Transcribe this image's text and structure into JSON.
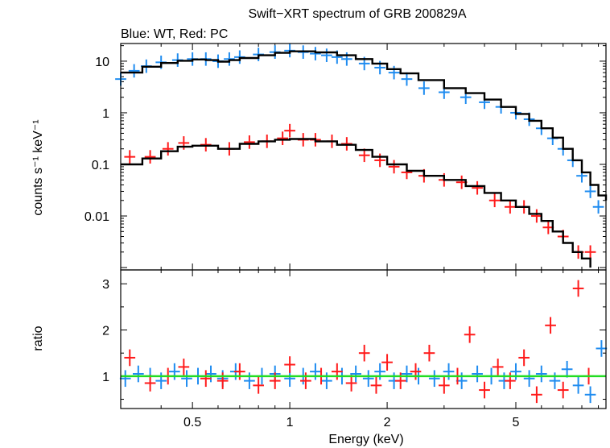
{
  "figure": {
    "title": "Swift−XRT spectrum of GRB 200829A",
    "subtitle": "Blue: WT, Red: PC",
    "xlabel": "Energy (keV)",
    "colors": {
      "wt": "#1f8cf0",
      "pc": "#ff1a1a",
      "model": "#000000",
      "unity": "#22dd22"
    }
  },
  "chart_data": [
    {
      "type": "scatter",
      "panel": "spectrum",
      "ylabel": "counts s⁻¹ keV⁻¹",
      "xscale": "log",
      "yscale": "log",
      "xlim": [
        0.3,
        9.5
      ],
      "ylim": [
        0.0009,
        22
      ],
      "x_ticks": [
        "0.5",
        "1",
        "2",
        "5"
      ],
      "y_ticks": [
        "10",
        "1",
        "0.1",
        "0.01"
      ],
      "series": [
        {
          "role": "WT",
          "x": [
            0.3,
            0.33,
            0.36,
            0.4,
            0.45,
            0.5,
            0.55,
            0.6,
            0.65,
            0.7,
            0.8,
            0.9,
            1.0,
            1.1,
            1.2,
            1.3,
            1.4,
            1.5,
            1.7,
            1.9,
            2.1,
            2.3,
            2.6,
            3.0,
            3.5,
            4.0,
            4.5,
            5.0,
            5.5,
            6.0,
            6.5,
            7.0,
            7.5,
            8.0,
            8.5,
            9.0
          ],
          "y": [
            4.5,
            6.5,
            8.0,
            9.5,
            10.5,
            11.0,
            11.0,
            10.0,
            11.0,
            12.0,
            13.5,
            15.0,
            16.0,
            15.0,
            14.0,
            13.0,
            12.0,
            11.0,
            9.0,
            7.5,
            6.0,
            4.5,
            3.0,
            2.5,
            2.0,
            1.6,
            1.3,
            1.0,
            0.75,
            0.5,
            0.32,
            0.2,
            0.12,
            0.06,
            0.03,
            0.015
          ]
        },
        {
          "role": "PC",
          "x": [
            0.32,
            0.37,
            0.42,
            0.47,
            0.55,
            0.65,
            0.75,
            0.85,
            0.95,
            1.0,
            1.1,
            1.2,
            1.35,
            1.5,
            1.7,
            1.9,
            2.1,
            2.3,
            2.6,
            3.0,
            3.4,
            3.8,
            4.3,
            4.8,
            5.3,
            5.8,
            6.3,
            7.0,
            7.8,
            8.5
          ],
          "y": [
            0.14,
            0.14,
            0.2,
            0.26,
            0.24,
            0.2,
            0.27,
            0.28,
            0.32,
            0.45,
            0.3,
            0.3,
            0.28,
            0.25,
            0.15,
            0.12,
            0.09,
            0.07,
            0.06,
            0.05,
            0.045,
            0.035,
            0.02,
            0.015,
            0.015,
            0.01,
            0.006,
            0.004,
            0.002,
            0.002
          ]
        },
        {
          "role": "model-WT",
          "x": [
            0.3,
            0.35,
            0.4,
            0.45,
            0.5,
            0.55,
            0.6,
            0.65,
            0.7,
            0.8,
            0.9,
            1.0,
            1.1,
            1.2,
            1.4,
            1.6,
            1.8,
            2.0,
            2.2,
            2.5,
            3.0,
            3.5,
            4.0,
            4.5,
            5.0,
            5.5,
            6.0,
            6.5,
            7.0,
            7.5,
            8.0,
            8.5,
            9.0,
            9.5
          ],
          "y": [
            6.0,
            7.8,
            9.2,
            10.2,
            10.8,
            10.5,
            9.8,
            10.5,
            11.5,
            13.0,
            14.5,
            15.5,
            15.5,
            14.8,
            13.0,
            11.0,
            9.0,
            7.0,
            5.8,
            4.3,
            3.0,
            2.4,
            1.8,
            1.3,
            0.95,
            0.7,
            0.5,
            0.33,
            0.2,
            0.12,
            0.07,
            0.04,
            0.025,
            0.02
          ]
        },
        {
          "role": "model-PC",
          "x": [
            0.3,
            0.35,
            0.4,
            0.45,
            0.5,
            0.6,
            0.7,
            0.8,
            0.9,
            1.0,
            1.2,
            1.4,
            1.6,
            1.8,
            2.0,
            2.3,
            2.6,
            3.0,
            3.5,
            4.0,
            4.5,
            5.0,
            5.5,
            6.0,
            6.5,
            7.0,
            7.5,
            8.0,
            8.5
          ],
          "y": [
            0.1,
            0.13,
            0.18,
            0.22,
            0.23,
            0.2,
            0.25,
            0.28,
            0.3,
            0.31,
            0.28,
            0.24,
            0.19,
            0.14,
            0.1,
            0.075,
            0.06,
            0.05,
            0.038,
            0.028,
            0.02,
            0.015,
            0.011,
            0.008,
            0.005,
            0.003,
            0.002,
            0.0015,
            0.001
          ]
        }
      ]
    },
    {
      "type": "scatter",
      "panel": "ratio",
      "ylabel": "ratio",
      "xscale": "log",
      "xlim": [
        0.3,
        9.5
      ],
      "ylim": [
        0.3,
        3.3
      ],
      "y_ticks": [
        "3",
        "2",
        "1"
      ],
      "reference_line": 1.0,
      "series": [
        {
          "role": "WT",
          "x": [
            0.31,
            0.34,
            0.37,
            0.4,
            0.44,
            0.48,
            0.52,
            0.57,
            0.62,
            0.68,
            0.75,
            0.82,
            0.9,
            1.0,
            1.1,
            1.2,
            1.3,
            1.45,
            1.6,
            1.75,
            1.9,
            2.1,
            2.3,
            2.5,
            2.8,
            3.1,
            3.4,
            3.8,
            4.2,
            4.6,
            5.0,
            5.5,
            6.0,
            6.6,
            7.2,
            7.8,
            8.5,
            9.2
          ],
          "y": [
            0.95,
            1.05,
            1.0,
            0.9,
            1.1,
            0.95,
            1.0,
            1.05,
            0.95,
            1.1,
            0.9,
            1.0,
            1.05,
            0.95,
            1.0,
            1.1,
            0.9,
            1.0,
            1.05,
            0.95,
            1.1,
            0.9,
            1.05,
            1.0,
            0.95,
            1.1,
            0.9,
            1.05,
            1.0,
            0.9,
            1.1,
            0.95,
            1.05,
            0.9,
            1.15,
            0.8,
            0.6,
            1.6
          ]
        },
        {
          "role": "PC",
          "x": [
            0.32,
            0.37,
            0.42,
            0.47,
            0.55,
            0.62,
            0.7,
            0.8,
            0.9,
            1.0,
            1.12,
            1.25,
            1.4,
            1.55,
            1.7,
            1.85,
            2.0,
            2.2,
            2.45,
            2.7,
            3.0,
            3.3,
            3.6,
            4.0,
            4.4,
            4.8,
            5.3,
            5.8,
            6.4,
            7.0,
            7.8,
            8.4
          ],
          "y": [
            1.4,
            0.85,
            1.0,
            1.2,
            0.95,
            0.9,
            1.1,
            0.8,
            0.9,
            1.25,
            0.9,
            1.0,
            1.1,
            0.85,
            1.5,
            0.8,
            1.3,
            0.9,
            1.1,
            1.5,
            0.8,
            1.0,
            1.9,
            0.7,
            1.2,
            0.9,
            1.4,
            0.6,
            2.1,
            0.7,
            2.9,
            1.0
          ]
        }
      ]
    }
  ]
}
